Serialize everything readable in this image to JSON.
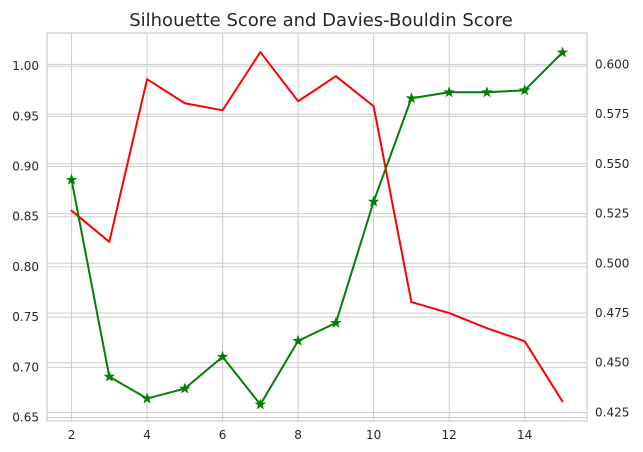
{
  "chart_data": {
    "type": "line",
    "title": "Silhouette Score and Davies-Bouldin Score",
    "xlabel": "",
    "ylabel_left": "",
    "ylabel_right": "",
    "x": [
      2,
      3,
      4,
      5,
      6,
      7,
      8,
      9,
      10,
      11,
      12,
      13,
      14,
      15
    ],
    "x_ticks": [
      "2",
      "4",
      "6",
      "8",
      "10",
      "12",
      "14"
    ],
    "x_tick_values": [
      2,
      4,
      6,
      8,
      10,
      12,
      14
    ],
    "xlim": [
      1.35,
      15.65
    ],
    "left_axis": {
      "ylim": [
        0.6465,
        1.033
      ],
      "ticks": [
        "0.65",
        "0.70",
        "0.75",
        "0.80",
        "0.85",
        "0.90",
        "0.95",
        "1.00"
      ],
      "tick_values": [
        0.65,
        0.7,
        0.75,
        0.8,
        0.85,
        0.9,
        0.95,
        1.0
      ]
    },
    "right_axis": {
      "ylim": [
        0.4207,
        0.6158
      ],
      "ticks": [
        "0.425",
        "0.450",
        "0.475",
        "0.500",
        "0.525",
        "0.550",
        "0.575",
        "0.600"
      ],
      "tick_values": [
        0.425,
        0.45,
        0.475,
        0.5,
        0.525,
        0.55,
        0.575,
        0.6
      ]
    },
    "series": [
      {
        "axis": "left",
        "color": "#ff0000",
        "marker": "none",
        "values": [
          0.856,
          0.825,
          0.987,
          0.963,
          0.956,
          1.014,
          0.965,
          0.99,
          0.96,
          0.765,
          0.754,
          0.739,
          0.726,
          0.666
        ]
      },
      {
        "axis": "right",
        "color": "#008000",
        "marker": "star",
        "values": [
          0.542,
          0.443,
          0.432,
          0.437,
          0.453,
          0.429,
          0.461,
          0.47,
          0.531,
          0.583,
          0.586,
          0.586,
          0.587,
          0.606
        ]
      }
    ],
    "grid": true,
    "legend": "none"
  }
}
